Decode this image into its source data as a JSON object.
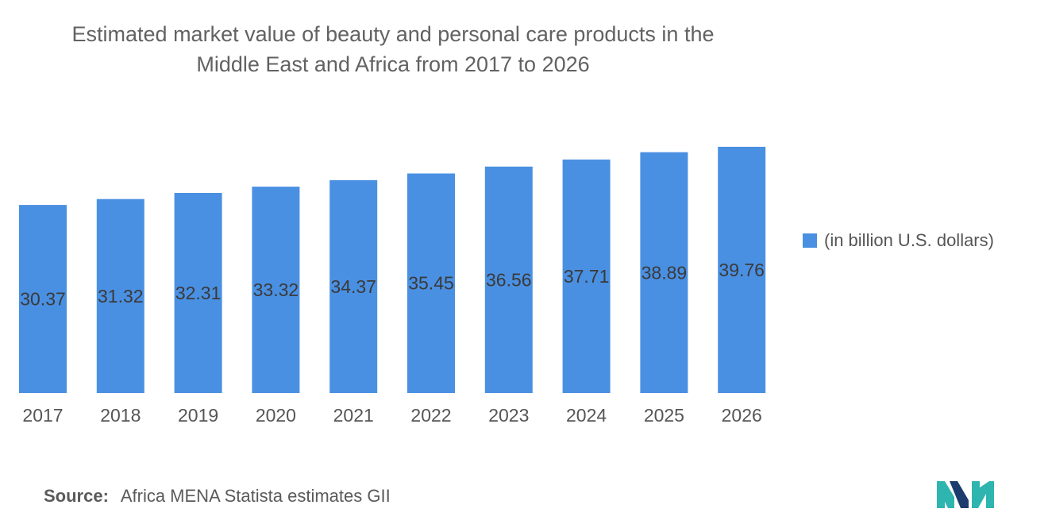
{
  "chart_data": {
    "type": "bar",
    "title": "Estimated market value of beauty and personal care products in the Middle East and Africa from 2017 to 2026",
    "title_lines": [
      "Estimated market value of beauty and personal care products in the",
      "Middle East and Africa from 2017 to 2026"
    ],
    "categories": [
      "2017",
      "2018",
      "2019",
      "2020",
      "2021",
      "2022",
      "2023",
      "2024",
      "2025",
      "2026"
    ],
    "series": [
      {
        "name": "(in billion U.S. dollars)",
        "values": [
          30.37,
          31.32,
          32.31,
          33.32,
          34.37,
          35.45,
          36.56,
          37.71,
          38.89,
          39.76
        ],
        "value_labels": [
          "30.37",
          "31.32",
          "32.31",
          "33.32",
          "34.37",
          "35.45",
          "36.56",
          "37.71",
          "38.89",
          "39.76"
        ]
      }
    ],
    "xlabel": "",
    "ylabel": "",
    "ylim": [
      0,
      40
    ],
    "grid": false,
    "legend_position": "right"
  },
  "source": {
    "label": "Source:",
    "text": "Africa MENA Statista estimates GII"
  },
  "colors": {
    "bar": "#4a90e2",
    "label": "#3a3a3a",
    "axis_text": "#555555",
    "logo_teal": "#2fb5b0",
    "logo_navy": "#1d3c6e"
  },
  "logo_icon": "mordor-intelligence-logo-icon"
}
